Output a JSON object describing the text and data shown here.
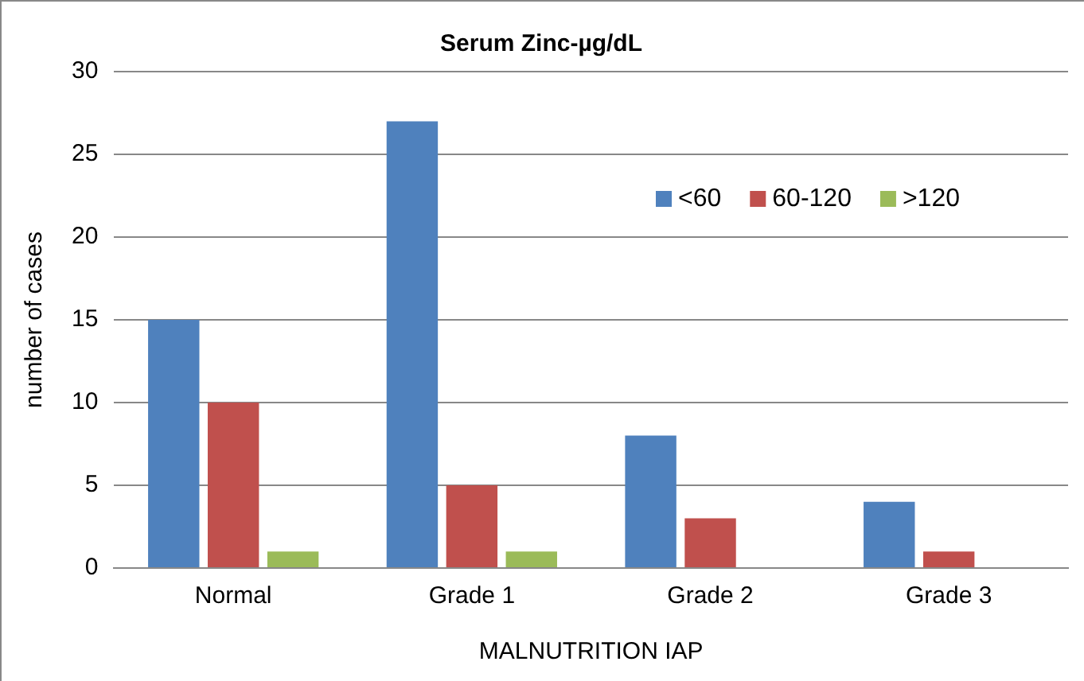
{
  "chart_data": {
    "type": "bar",
    "title": "Serum Zinc-µg/dL",
    "xlabel": "MALNUTRITION IAP",
    "ylabel": "number of cases",
    "categories": [
      "Normal",
      "Grade 1",
      "Grade 2",
      "Grade 3"
    ],
    "series": [
      {
        "name": "<60",
        "color": "#4f81bd",
        "values": [
          15,
          27,
          8,
          4
        ]
      },
      {
        "name": "60-120",
        "color": "#c0504d",
        "values": [
          10,
          5,
          3,
          1
        ]
      },
      {
        "name": ">120",
        "color": "#9bbb59",
        "values": [
          1,
          1,
          0,
          0
        ]
      }
    ],
    "ylim": [
      0,
      30
    ],
    "yticks": [
      0,
      5,
      10,
      15,
      20,
      25,
      30
    ],
    "grid": "y",
    "legend": "top right"
  }
}
